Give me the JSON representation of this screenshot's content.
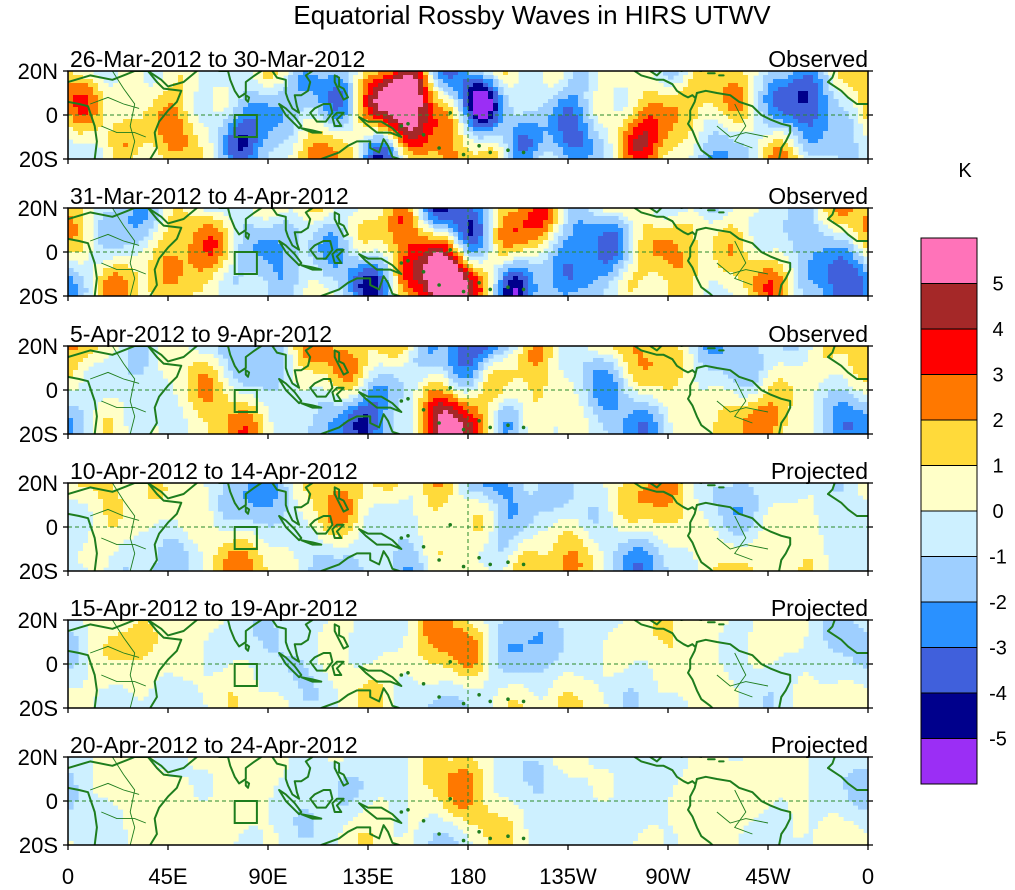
{
  "title": "Equatorial Rossby Waves in HIRS UTWV",
  "panels": [
    {
      "dates": "26-Mar-2012 to 30-Mar-2012",
      "status": "Observed",
      "amp": 1.0
    },
    {
      "dates": "31-Mar-2012 to 4-Apr-2012",
      "status": "Observed",
      "amp": 0.95
    },
    {
      "dates": "5-Apr-2012 to 9-Apr-2012",
      "status": "Observed",
      "amp": 0.75
    },
    {
      "dates": "10-Apr-2012 to 14-Apr-2012",
      "status": "Projected",
      "amp": 0.55
    },
    {
      "dates": "15-Apr-2012 to 19-Apr-2012",
      "status": "Projected",
      "amp": 0.38
    },
    {
      "dates": "20-Apr-2012 to 24-Apr-2012",
      "status": "Projected",
      "amp": 0.3
    }
  ],
  "lat_labels": [
    "20N",
    "0",
    "20S"
  ],
  "lon_labels": [
    "0",
    "45E",
    "90E",
    "135E",
    "180",
    "135W",
    "90W",
    "45W",
    "0"
  ],
  "colorbar": {
    "unit": "K",
    "tick_labels": [
      "5",
      "4",
      "3",
      "2",
      "1",
      "0",
      "-1",
      "-2",
      "-3",
      "-4",
      "-5"
    ],
    "colors": [
      "#ff73b9",
      "#a52828",
      "#ff0000",
      "#ff7800",
      "#ffda3a",
      "#ffffc8",
      "#cdf0ff",
      "#9ecfff",
      "#2a91ff",
      "#4060dc",
      "#00008c",
      "#9b2ef5"
    ]
  },
  "features": {
    "coast_color": "#1e7d1e",
    "box_color": "#1e7d1e",
    "reference_line_color": "#2a8a2a"
  }
}
